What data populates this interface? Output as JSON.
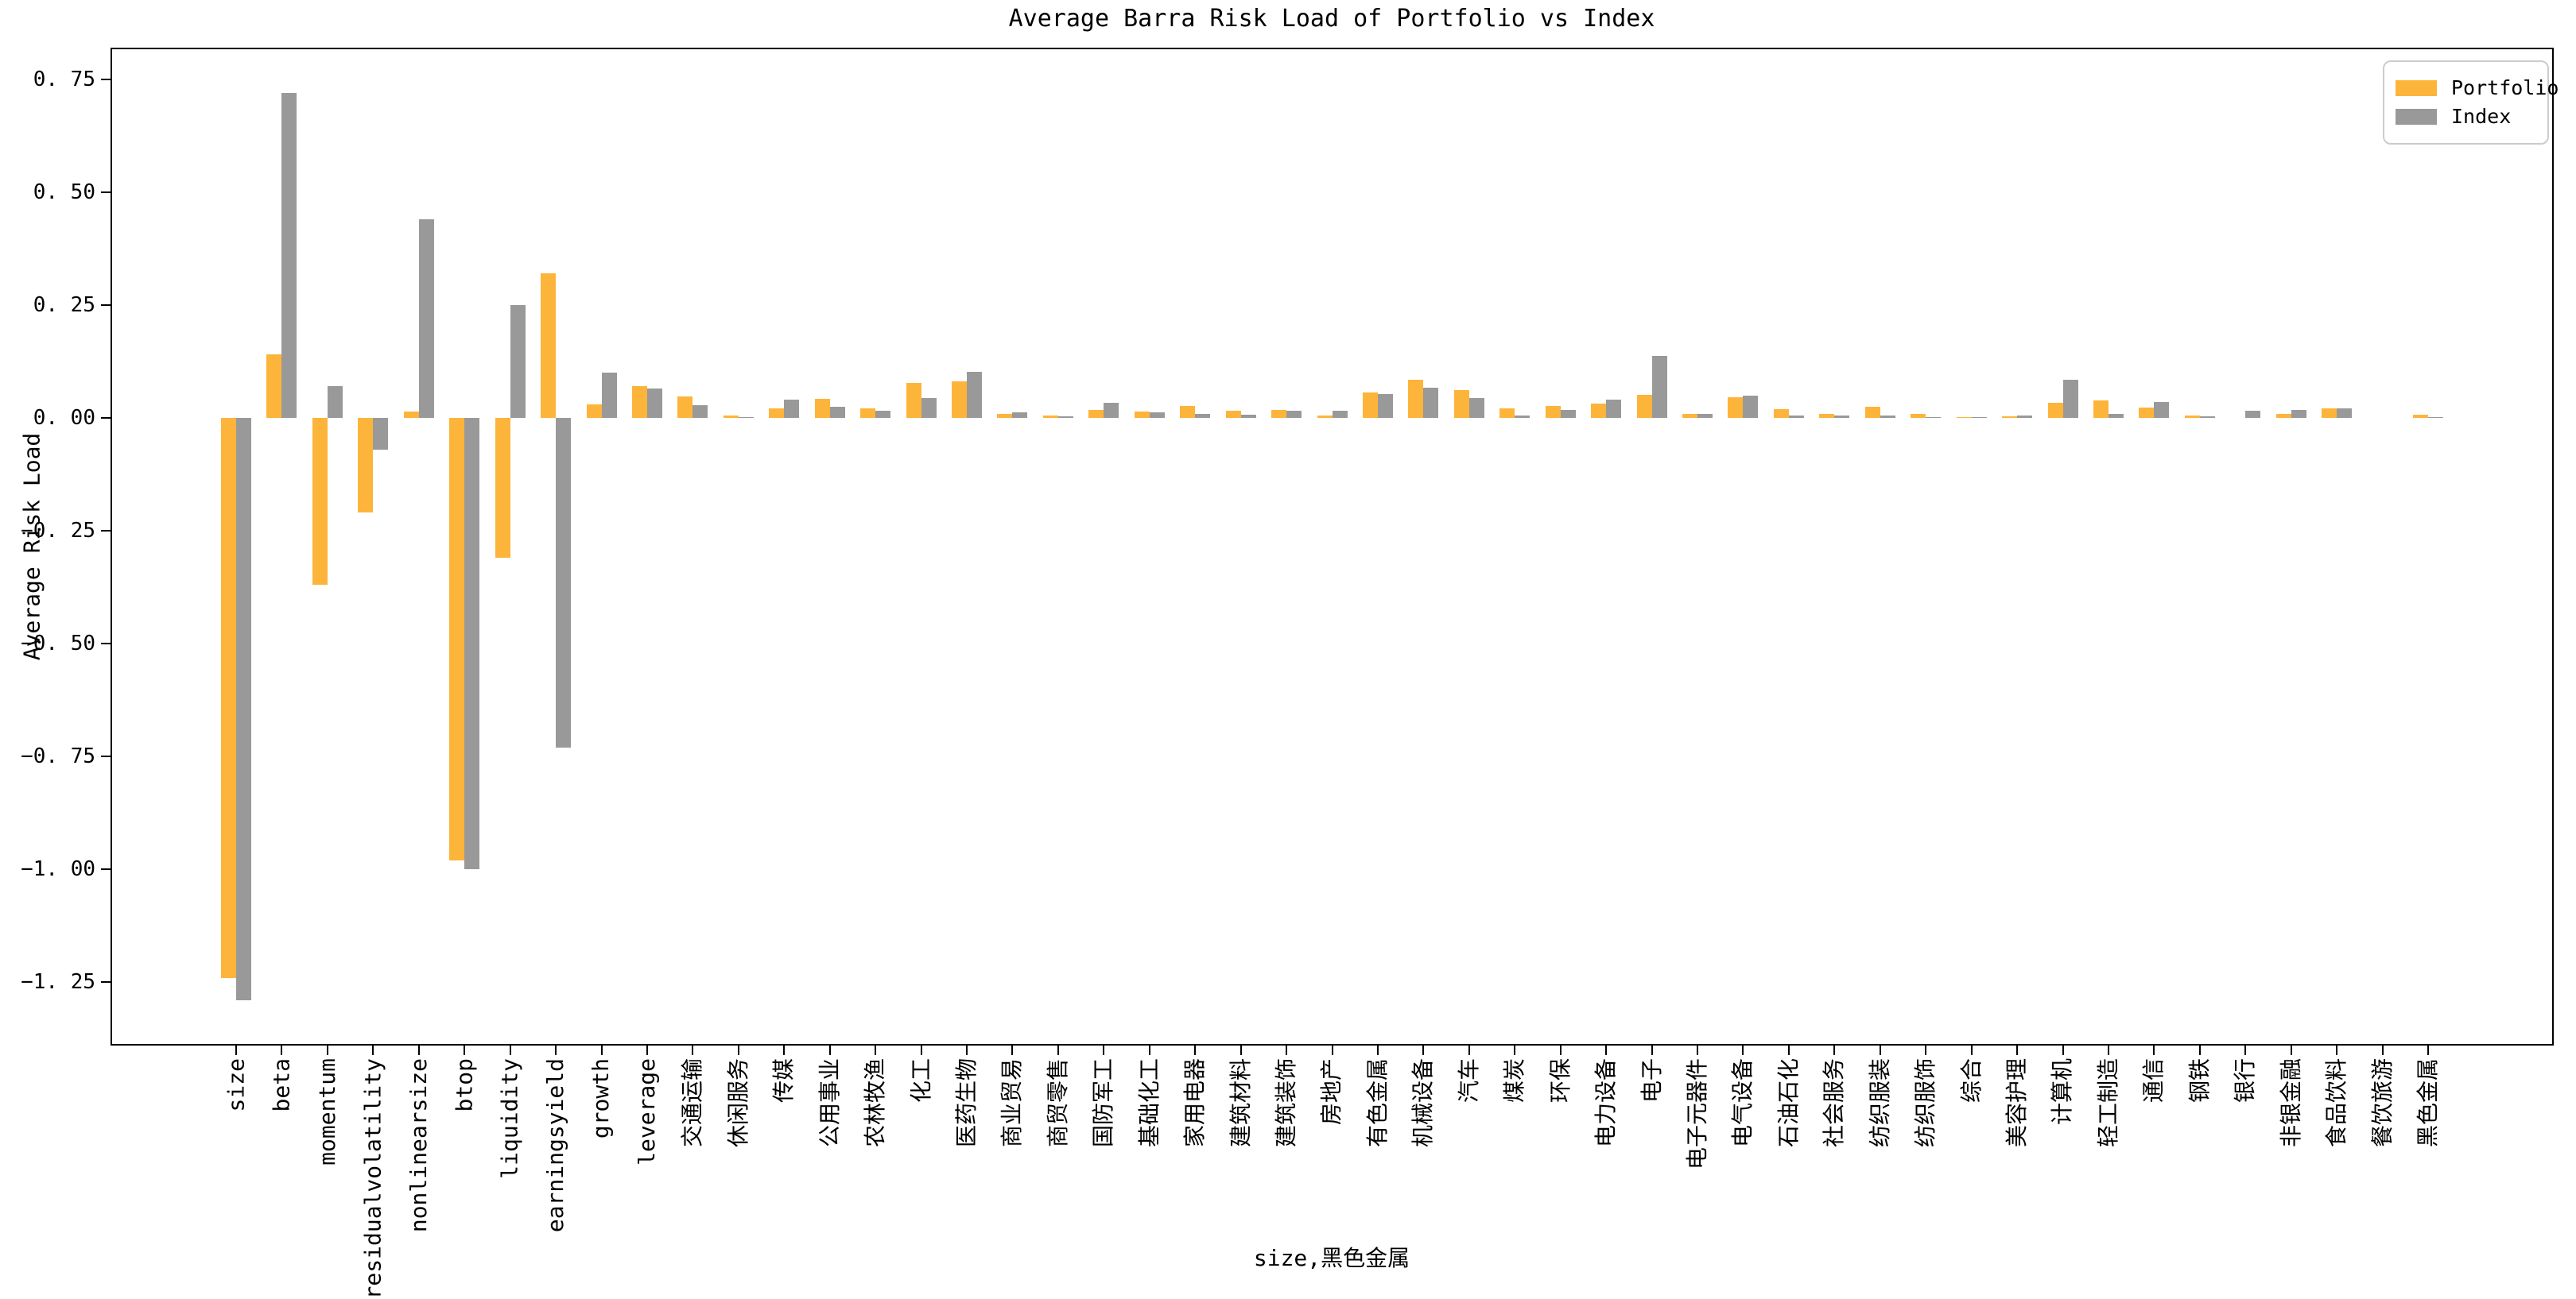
{
  "chart_data": {
    "type": "bar",
    "title": "Average Barra Risk Load of Portfolio vs Index",
    "xlabel": "size,黑色金属",
    "ylabel": "Average Risk Load",
    "ylim": [
      -1.39,
      0.82
    ],
    "yticks": [
      0.75,
      0.5,
      0.25,
      0.0,
      -0.25,
      -0.5,
      -0.75,
      -1.0,
      -1.25
    ],
    "ytick_labels": [
      "0. 75",
      "0. 50",
      "0. 25",
      "0. 00",
      "−0. 25",
      "−0. 50",
      "−0. 75",
      "−1. 00",
      "−1. 25"
    ],
    "grid": false,
    "legend_position": "upper right",
    "categories": [
      "size",
      "beta",
      "momentum",
      "residualvolatility",
      "nonlinearsize",
      "btop",
      "liquidity",
      "earningsyield",
      "growth",
      "leverage",
      "交通运输",
      "休闲服务",
      "传媒",
      "公用事业",
      "农林牧渔",
      "化工",
      "医药生物",
      "商业贸易",
      "商贸零售",
      "国防军工",
      "基础化工",
      "家用电器",
      "建筑材料",
      "建筑装饰",
      "房地产",
      "有色金属",
      "机械设备",
      "汽车",
      "煤炭",
      "环保",
      "电力设备",
      "电子",
      "电子元器件",
      "电气设备",
      "石油石化",
      "社会服务",
      "纺织服装",
      "纺织服饰",
      "综合",
      "美容护理",
      "计算机",
      "轻工制造",
      "通信",
      "钢铁",
      "银行",
      "非银金融",
      "食品饮料",
      "餐饮旅游",
      "黑色金属"
    ],
    "series": [
      {
        "name": "Portfolio",
        "color": "#FDB43A",
        "values": [
          -1.24,
          0.14,
          -0.37,
          -0.21,
          0.015,
          -0.98,
          -0.31,
          0.32,
          0.03,
          0.07,
          0.048,
          0.005,
          0.022,
          0.042,
          0.021,
          0.077,
          0.081,
          0.009,
          0.005,
          0.017,
          0.015,
          0.026,
          0.016,
          0.018,
          0.006,
          0.056,
          0.084,
          0.062,
          0.022,
          0.026,
          0.031,
          0.051,
          0.008,
          0.046,
          0.019,
          0.009,
          0.024,
          0.008,
          0.002,
          0.004,
          0.034,
          0.039,
          0.023,
          0.006,
          0.0,
          0.008,
          0.021,
          0.0,
          0.007
        ]
      },
      {
        "name": "Index",
        "color": "#999999",
        "values": [
          -1.29,
          0.72,
          0.07,
          -0.07,
          0.44,
          -1.0,
          0.25,
          -0.73,
          0.1,
          0.065,
          0.028,
          0.001,
          0.04,
          0.025,
          0.016,
          0.044,
          0.102,
          0.013,
          0.004,
          0.034,
          0.012,
          0.009,
          0.007,
          0.016,
          0.016,
          0.053,
          0.067,
          0.044,
          0.006,
          0.018,
          0.041,
          0.137,
          0.008,
          0.049,
          0.006,
          0.006,
          0.006,
          0.002,
          0.002,
          0.005,
          0.085,
          0.009,
          0.035,
          0.003,
          0.016,
          0.017,
          0.021,
          0.0,
          0.002
        ]
      }
    ],
    "colors": {
      "portfolio": "#FDB43A",
      "index": "#999999",
      "spine": "#000000",
      "legend_border": "#cccccc",
      "background": "#ffffff"
    }
  }
}
